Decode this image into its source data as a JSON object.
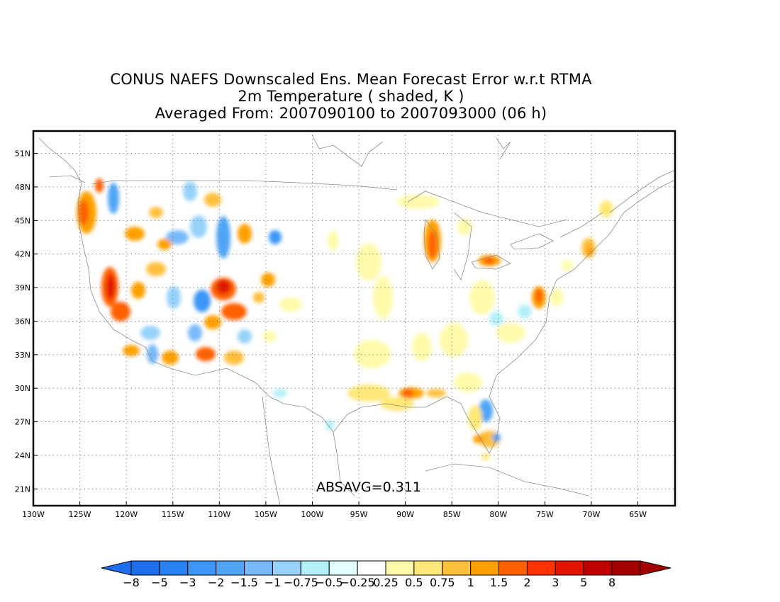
{
  "title": {
    "line1": "CONUS NAEFS Downscaled Ens. Mean Forecast Error w.r.t RTMA",
    "line2": "2m Temperature ( shaded, K )",
    "line3": "Averaged From: 2007090100 to 2007093000 (06 h)"
  },
  "map": {
    "lon_range": [
      -130,
      -61
    ],
    "lat_range": [
      19.5,
      53
    ],
    "lat_ticks": [
      {
        "value": 51,
        "label": "51N"
      },
      {
        "value": 48,
        "label": "48N"
      },
      {
        "value": 45,
        "label": "45N"
      },
      {
        "value": 42,
        "label": "42N"
      },
      {
        "value": 39,
        "label": "39N"
      },
      {
        "value": 36,
        "label": "36N"
      },
      {
        "value": 33,
        "label": "33N"
      },
      {
        "value": 30,
        "label": "30N"
      },
      {
        "value": 27,
        "label": "27N"
      },
      {
        "value": 24,
        "label": "24N"
      },
      {
        "value": 21,
        "label": "21N"
      }
    ],
    "lon_ticks": [
      {
        "value": -130,
        "label": "130W"
      },
      {
        "value": -125,
        "label": "125W"
      },
      {
        "value": -120,
        "label": "120W"
      },
      {
        "value": -115,
        "label": "115W"
      },
      {
        "value": -110,
        "label": "110W"
      },
      {
        "value": -105,
        "label": "105W"
      },
      {
        "value": -100,
        "label": "100W"
      },
      {
        "value": -95,
        "label": "95W"
      },
      {
        "value": -90,
        "label": "90W"
      },
      {
        "value": -85,
        "label": "85W"
      },
      {
        "value": -80,
        "label": "80W"
      },
      {
        "value": -75,
        "label": "75W"
      },
      {
        "value": -70,
        "label": "70W"
      },
      {
        "value": -65,
        "label": "65W"
      }
    ],
    "grid": true,
    "absavg_label": "ABSAVG=0.311"
  },
  "colorbar": {
    "labels": [
      "-8",
      "-5",
      "-3",
      "-2",
      "-1.5",
      "-1",
      "-0.75",
      "-0.5",
      "-0.25",
      "0.25",
      "0.5",
      "0.75",
      "1",
      "1.5",
      "2",
      "3",
      "5",
      "8"
    ],
    "colors": [
      "#1e6eeb",
      "#2882f0",
      "#3c96f5",
      "#50a5f5",
      "#78b9fa",
      "#96d2fa",
      "#b4f0fa",
      "#e1ffff",
      "#ffffff",
      "#fffaaa",
      "#ffe878",
      "#ffc03c",
      "#ffa000",
      "#ff6000",
      "#ff3200",
      "#e11400",
      "#c00000",
      "#a50000"
    ]
  }
}
